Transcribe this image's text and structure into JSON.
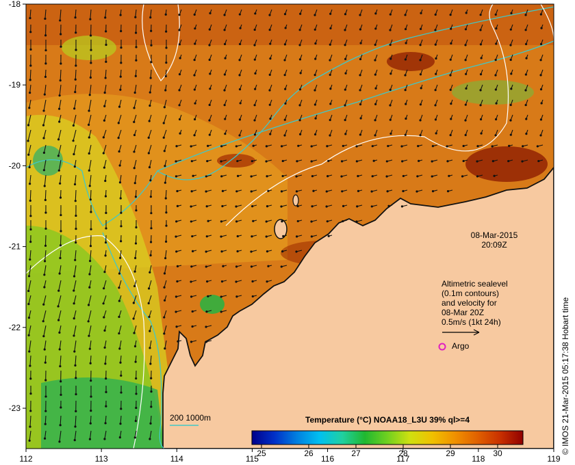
{
  "map": {
    "longitude_ticks": [
      "112",
      "113",
      "114",
      "115",
      "116",
      "117",
      "118",
      "119"
    ],
    "latitude_ticks": [
      "-18",
      "-19",
      "-20",
      "-21",
      "-22",
      "-23"
    ],
    "land_color": "#f7c9a0",
    "coast_color": "#111111"
  },
  "timestamp": {
    "date": "08-Mar-2015",
    "time": "20:09Z"
  },
  "legend": {
    "line1": "Altimetric sealevel",
    "line2": "(0.1m contours)",
    "line3": "and velocity for",
    "line4": "08-Mar 20Z",
    "line5": "0.5m/s (1kt 24h)",
    "argo_label": "Argo",
    "argo_color": "#e020c0",
    "isobath_label": "200  1000m",
    "isobath_color": "#40c8c8"
  },
  "colorbar": {
    "title": "Temperature (°C) NOAA18_L3U 39% ql>=4",
    "ticks": [
      "25",
      "26",
      "27",
      "28",
      "29",
      "30"
    ],
    "colors": [
      "#00008a",
      "#0030c8",
      "#0080e0",
      "#00c0f0",
      "#20d0a0",
      "#20b830",
      "#70d020",
      "#d0e010",
      "#f0c000",
      "#f09000",
      "#e06000",
      "#c83000",
      "#900000"
    ]
  },
  "credit": "© IMOS 21-Mar-2015 05:17:38 Hobart time"
}
